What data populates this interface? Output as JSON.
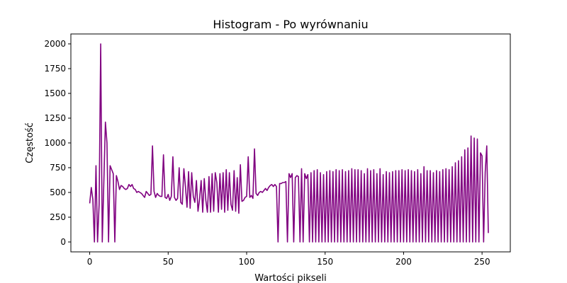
{
  "chart_data": {
    "type": "line",
    "title": "Histogram - Po wyrównaniu",
    "xlabel": "Wartości pikseli",
    "ylabel": "Częstość",
    "xlim": [
      -12,
      268
    ],
    "ylim": [
      -100,
      2100
    ],
    "x_ticks": [
      0,
      50,
      100,
      150,
      200,
      250
    ],
    "y_ticks": [
      0,
      250,
      500,
      750,
      1000,
      1250,
      1500,
      1750,
      2000
    ],
    "grid": false,
    "legend": "none",
    "series": [
      {
        "color": "#800080",
        "points": [
          [
            0,
            390
          ],
          [
            1,
            550
          ],
          [
            2,
            430
          ],
          [
            3,
            0
          ],
          [
            4,
            770
          ],
          [
            5,
            0
          ],
          [
            6,
            380
          ],
          [
            7,
            2000
          ],
          [
            8,
            0
          ],
          [
            9,
            600
          ],
          [
            10,
            1210
          ],
          [
            11,
            1000
          ],
          [
            12,
            0
          ],
          [
            13,
            770
          ],
          [
            14,
            730
          ],
          [
            15,
            690
          ],
          [
            16,
            0
          ],
          [
            17,
            670
          ],
          [
            18,
            610
          ],
          [
            19,
            530
          ],
          [
            20,
            570
          ],
          [
            21,
            560
          ],
          [
            22,
            540
          ],
          [
            23,
            530
          ],
          [
            24,
            540
          ],
          [
            25,
            580
          ],
          [
            26,
            560
          ],
          [
            27,
            580
          ],
          [
            28,
            540
          ],
          [
            29,
            530
          ],
          [
            30,
            500
          ],
          [
            31,
            510
          ],
          [
            32,
            500
          ],
          [
            33,
            490
          ],
          [
            34,
            470
          ],
          [
            35,
            450
          ],
          [
            36,
            510
          ],
          [
            37,
            490
          ],
          [
            38,
            470
          ],
          [
            39,
            480
          ],
          [
            40,
            970
          ],
          [
            41,
            510
          ],
          [
            42,
            450
          ],
          [
            43,
            490
          ],
          [
            44,
            470
          ],
          [
            45,
            460
          ],
          [
            46,
            460
          ],
          [
            47,
            880
          ],
          [
            48,
            450
          ],
          [
            49,
            440
          ],
          [
            50,
            480
          ],
          [
            51,
            420
          ],
          [
            52,
            460
          ],
          [
            53,
            860
          ],
          [
            54,
            450
          ],
          [
            55,
            420
          ],
          [
            56,
            440
          ],
          [
            57,
            750
          ],
          [
            58,
            400
          ],
          [
            59,
            380
          ],
          [
            60,
            740
          ],
          [
            61,
            560
          ],
          [
            62,
            350
          ],
          [
            63,
            710
          ],
          [
            64,
            340
          ],
          [
            65,
            700
          ],
          [
            66,
            460
          ],
          [
            67,
            400
          ],
          [
            68,
            620
          ],
          [
            69,
            310
          ],
          [
            70,
            430
          ],
          [
            71,
            620
          ],
          [
            72,
            300
          ],
          [
            73,
            640
          ],
          [
            74,
            420
          ],
          [
            75,
            300
          ],
          [
            76,
            660
          ],
          [
            77,
            300
          ],
          [
            78,
            690
          ],
          [
            79,
            310
          ],
          [
            80,
            700
          ],
          [
            81,
            600
          ],
          [
            82,
            300
          ],
          [
            83,
            690
          ],
          [
            84,
            330
          ],
          [
            85,
            700
          ],
          [
            86,
            300
          ],
          [
            87,
            730
          ],
          [
            88,
            320
          ],
          [
            89,
            700
          ],
          [
            90,
            380
          ],
          [
            91,
            320
          ],
          [
            92,
            720
          ],
          [
            93,
            310
          ],
          [
            94,
            650
          ],
          [
            95,
            290
          ],
          [
            96,
            780
          ],
          [
            97,
            410
          ],
          [
            98,
            420
          ],
          [
            99,
            450
          ],
          [
            100,
            460
          ],
          [
            101,
            860
          ],
          [
            102,
            450
          ],
          [
            103,
            470
          ],
          [
            104,
            440
          ],
          [
            105,
            940
          ],
          [
            106,
            490
          ],
          [
            107,
            470
          ],
          [
            108,
            500
          ],
          [
            109,
            510
          ],
          [
            110,
            500
          ],
          [
            111,
            520
          ],
          [
            112,
            540
          ],
          [
            113,
            520
          ],
          [
            114,
            550
          ],
          [
            115,
            570
          ],
          [
            116,
            580
          ],
          [
            117,
            560
          ],
          [
            118,
            580
          ],
          [
            119,
            560
          ],
          [
            120,
            0
          ],
          [
            121,
            590
          ],
          [
            122,
            590
          ],
          [
            123,
            600
          ],
          [
            124,
            600
          ],
          [
            125,
            610
          ],
          [
            126,
            0
          ],
          [
            127,
            690
          ],
          [
            128,
            650
          ],
          [
            129,
            690
          ],
          [
            130,
            0
          ],
          [
            131,
            650
          ],
          [
            132,
            670
          ],
          [
            133,
            660
          ],
          [
            134,
            0
          ],
          [
            135,
            740
          ],
          [
            136,
            0
          ],
          [
            137,
            690
          ],
          [
            138,
            640
          ],
          [
            139,
            680
          ],
          [
            140,
            0
          ],
          [
            141,
            700
          ],
          [
            142,
            0
          ],
          [
            143,
            720
          ],
          [
            144,
            0
          ],
          [
            145,
            730
          ],
          [
            146,
            0
          ],
          [
            147,
            700
          ],
          [
            148,
            0
          ],
          [
            149,
            680
          ],
          [
            150,
            0
          ],
          [
            151,
            710
          ],
          [
            152,
            0
          ],
          [
            153,
            720
          ],
          [
            154,
            0
          ],
          [
            155,
            710
          ],
          [
            156,
            0
          ],
          [
            157,
            730
          ],
          [
            158,
            0
          ],
          [
            159,
            720
          ],
          [
            160,
            0
          ],
          [
            161,
            730
          ],
          [
            162,
            0
          ],
          [
            163,
            710
          ],
          [
            164,
            0
          ],
          [
            165,
            720
          ],
          [
            166,
            0
          ],
          [
            167,
            740
          ],
          [
            168,
            0
          ],
          [
            169,
            730
          ],
          [
            170,
            0
          ],
          [
            171,
            730
          ],
          [
            172,
            0
          ],
          [
            173,
            720
          ],
          [
            174,
            0
          ],
          [
            175,
            690
          ],
          [
            176,
            0
          ],
          [
            177,
            740
          ],
          [
            178,
            0
          ],
          [
            179,
            720
          ],
          [
            180,
            0
          ],
          [
            181,
            730
          ],
          [
            182,
            0
          ],
          [
            183,
            690
          ],
          [
            184,
            0
          ],
          [
            185,
            740
          ],
          [
            186,
            0
          ],
          [
            187,
            680
          ],
          [
            188,
            0
          ],
          [
            189,
            710
          ],
          [
            190,
            0
          ],
          [
            191,
            700
          ],
          [
            192,
            0
          ],
          [
            193,
            710
          ],
          [
            194,
            0
          ],
          [
            195,
            720
          ],
          [
            196,
            0
          ],
          [
            197,
            720
          ],
          [
            198,
            0
          ],
          [
            199,
            730
          ],
          [
            200,
            0
          ],
          [
            201,
            720
          ],
          [
            202,
            0
          ],
          [
            203,
            730
          ],
          [
            204,
            0
          ],
          [
            205,
            720
          ],
          [
            206,
            0
          ],
          [
            207,
            710
          ],
          [
            208,
            0
          ],
          [
            209,
            730
          ],
          [
            210,
            0
          ],
          [
            211,
            690
          ],
          [
            212,
            0
          ],
          [
            213,
            760
          ],
          [
            214,
            0
          ],
          [
            215,
            720
          ],
          [
            216,
            0
          ],
          [
            217,
            720
          ],
          [
            218,
            0
          ],
          [
            219,
            700
          ],
          [
            220,
            0
          ],
          [
            221,
            720
          ],
          [
            222,
            0
          ],
          [
            223,
            710
          ],
          [
            224,
            0
          ],
          [
            225,
            730
          ],
          [
            226,
            0
          ],
          [
            227,
            740
          ],
          [
            228,
            0
          ],
          [
            229,
            730
          ],
          [
            230,
            0
          ],
          [
            231,
            760
          ],
          [
            232,
            0
          ],
          [
            233,
            800
          ],
          [
            234,
            0
          ],
          [
            235,
            820
          ],
          [
            236,
            0
          ],
          [
            237,
            860
          ],
          [
            238,
            0
          ],
          [
            239,
            930
          ],
          [
            240,
            0
          ],
          [
            241,
            950
          ],
          [
            242,
            0
          ],
          [
            243,
            1070
          ],
          [
            244,
            0
          ],
          [
            245,
            1050
          ],
          [
            246,
            0
          ],
          [
            247,
            1040
          ],
          [
            248,
            0
          ],
          [
            249,
            900
          ],
          [
            250,
            870
          ],
          [
            251,
            0
          ],
          [
            252,
            700
          ],
          [
            253,
            970
          ],
          [
            254,
            90
          ]
        ]
      }
    ]
  }
}
